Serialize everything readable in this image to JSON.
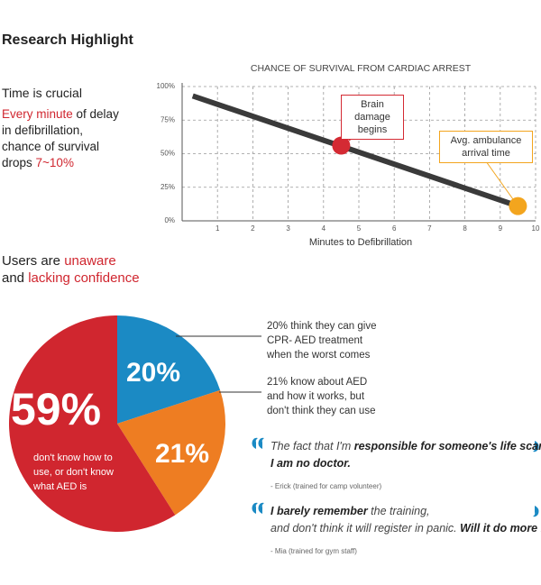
{
  "header": {
    "title": "Research Highlight"
  },
  "time": {
    "heading": "Time is crucial",
    "lines": [
      [
        {
          "text": "Every minute",
          "style": "red"
        },
        {
          "text": " of delay",
          "style": "plain"
        }
      ],
      [
        {
          "text": "in defibrillation,",
          "style": "plain"
        }
      ],
      [
        {
          "text": "chance of survival",
          "style": "plain"
        }
      ],
      [
        {
          "text": "drops ",
          "style": "plain"
        },
        {
          "text": "7~10%",
          "style": "red"
        }
      ]
    ]
  },
  "users": {
    "lines": [
      [
        {
          "text": "Users are ",
          "style": "plain"
        },
        {
          "text": "unaware",
          "style": "red"
        }
      ],
      [
        {
          "text": "and ",
          "style": "plain"
        },
        {
          "text": "lacking confidence",
          "style": "red"
        }
      ]
    ]
  },
  "chart_data": [
    {
      "type": "line",
      "title": "CHANCE OF SURVIVAL FROM CARDIAC ARREST",
      "x_label": "Minutes to Defibrillation",
      "series": [
        {
          "x": [
            0.3,
            9.5
          ],
          "values": [
            93,
            11
          ],
          "color": "#3a3a3a"
        }
      ],
      "annotations": [
        {
          "x": 4.5,
          "value": 56,
          "color": "#d42a33",
          "text": [
            "Brain damage",
            "begins"
          ]
        },
        {
          "x": 9.5,
          "value": 11,
          "color": "#f3a51e",
          "text": [
            "Avg. ambulance",
            "arrival time"
          ]
        }
      ],
      "xlim": [
        0,
        10
      ],
      "xticks": [
        1,
        2,
        3,
        4,
        5,
        6,
        7,
        8,
        9,
        10
      ],
      "ylim": [
        0,
        100
      ],
      "yticks": [
        {
          "value": 0,
          "label": "0%"
        },
        {
          "value": 25,
          "label": "25%"
        },
        {
          "value": 50,
          "label": "50%"
        },
        {
          "value": 75,
          "label": "75%"
        },
        {
          "value": 100,
          "label": "100%"
        }
      ],
      "grid": true
    },
    {
      "type": "pie",
      "values": [
        20,
        21,
        59
      ],
      "value_labels": [
        "20%",
        "21%",
        "59%"
      ],
      "colors": [
        "#1b8ac4",
        "#ee7d22",
        "#d0262f"
      ],
      "annotations": [
        {
          "text": [
            "don't know how to",
            "use, or don't know",
            "what AED is"
          ]
        }
      ]
    }
  ],
  "callouts": [
    [
      "20% think they can give",
      "CPR- AED treatment",
      "when the worst comes"
    ],
    [
      "21% know about AED",
      "and how it works, but",
      "don't think they can use"
    ]
  ],
  "quotes": [
    {
      "lines": [
        [
          {
            "text": "The fact that I'm ",
            "style": "italic"
          },
          {
            "text": "responsible for someone's life scares me.",
            "style": "bold"
          }
        ],
        [
          {
            "text": "I am no doctor.",
            "style": "bold"
          }
        ]
      ],
      "author": "- Erick (trained for camp volunteer)"
    },
    {
      "lines": [
        [
          {
            "text": "I barely remember",
            "style": "bold"
          },
          {
            "text": " the training,",
            "style": "italic"
          }
        ],
        [
          {
            "text": "and don't think it will register in panic. ",
            "style": "italic"
          },
          {
            "text": "Will it do more harm?",
            "style": "bold"
          }
        ]
      ],
      "author": "- Mia (trained for gym staff)"
    }
  ]
}
